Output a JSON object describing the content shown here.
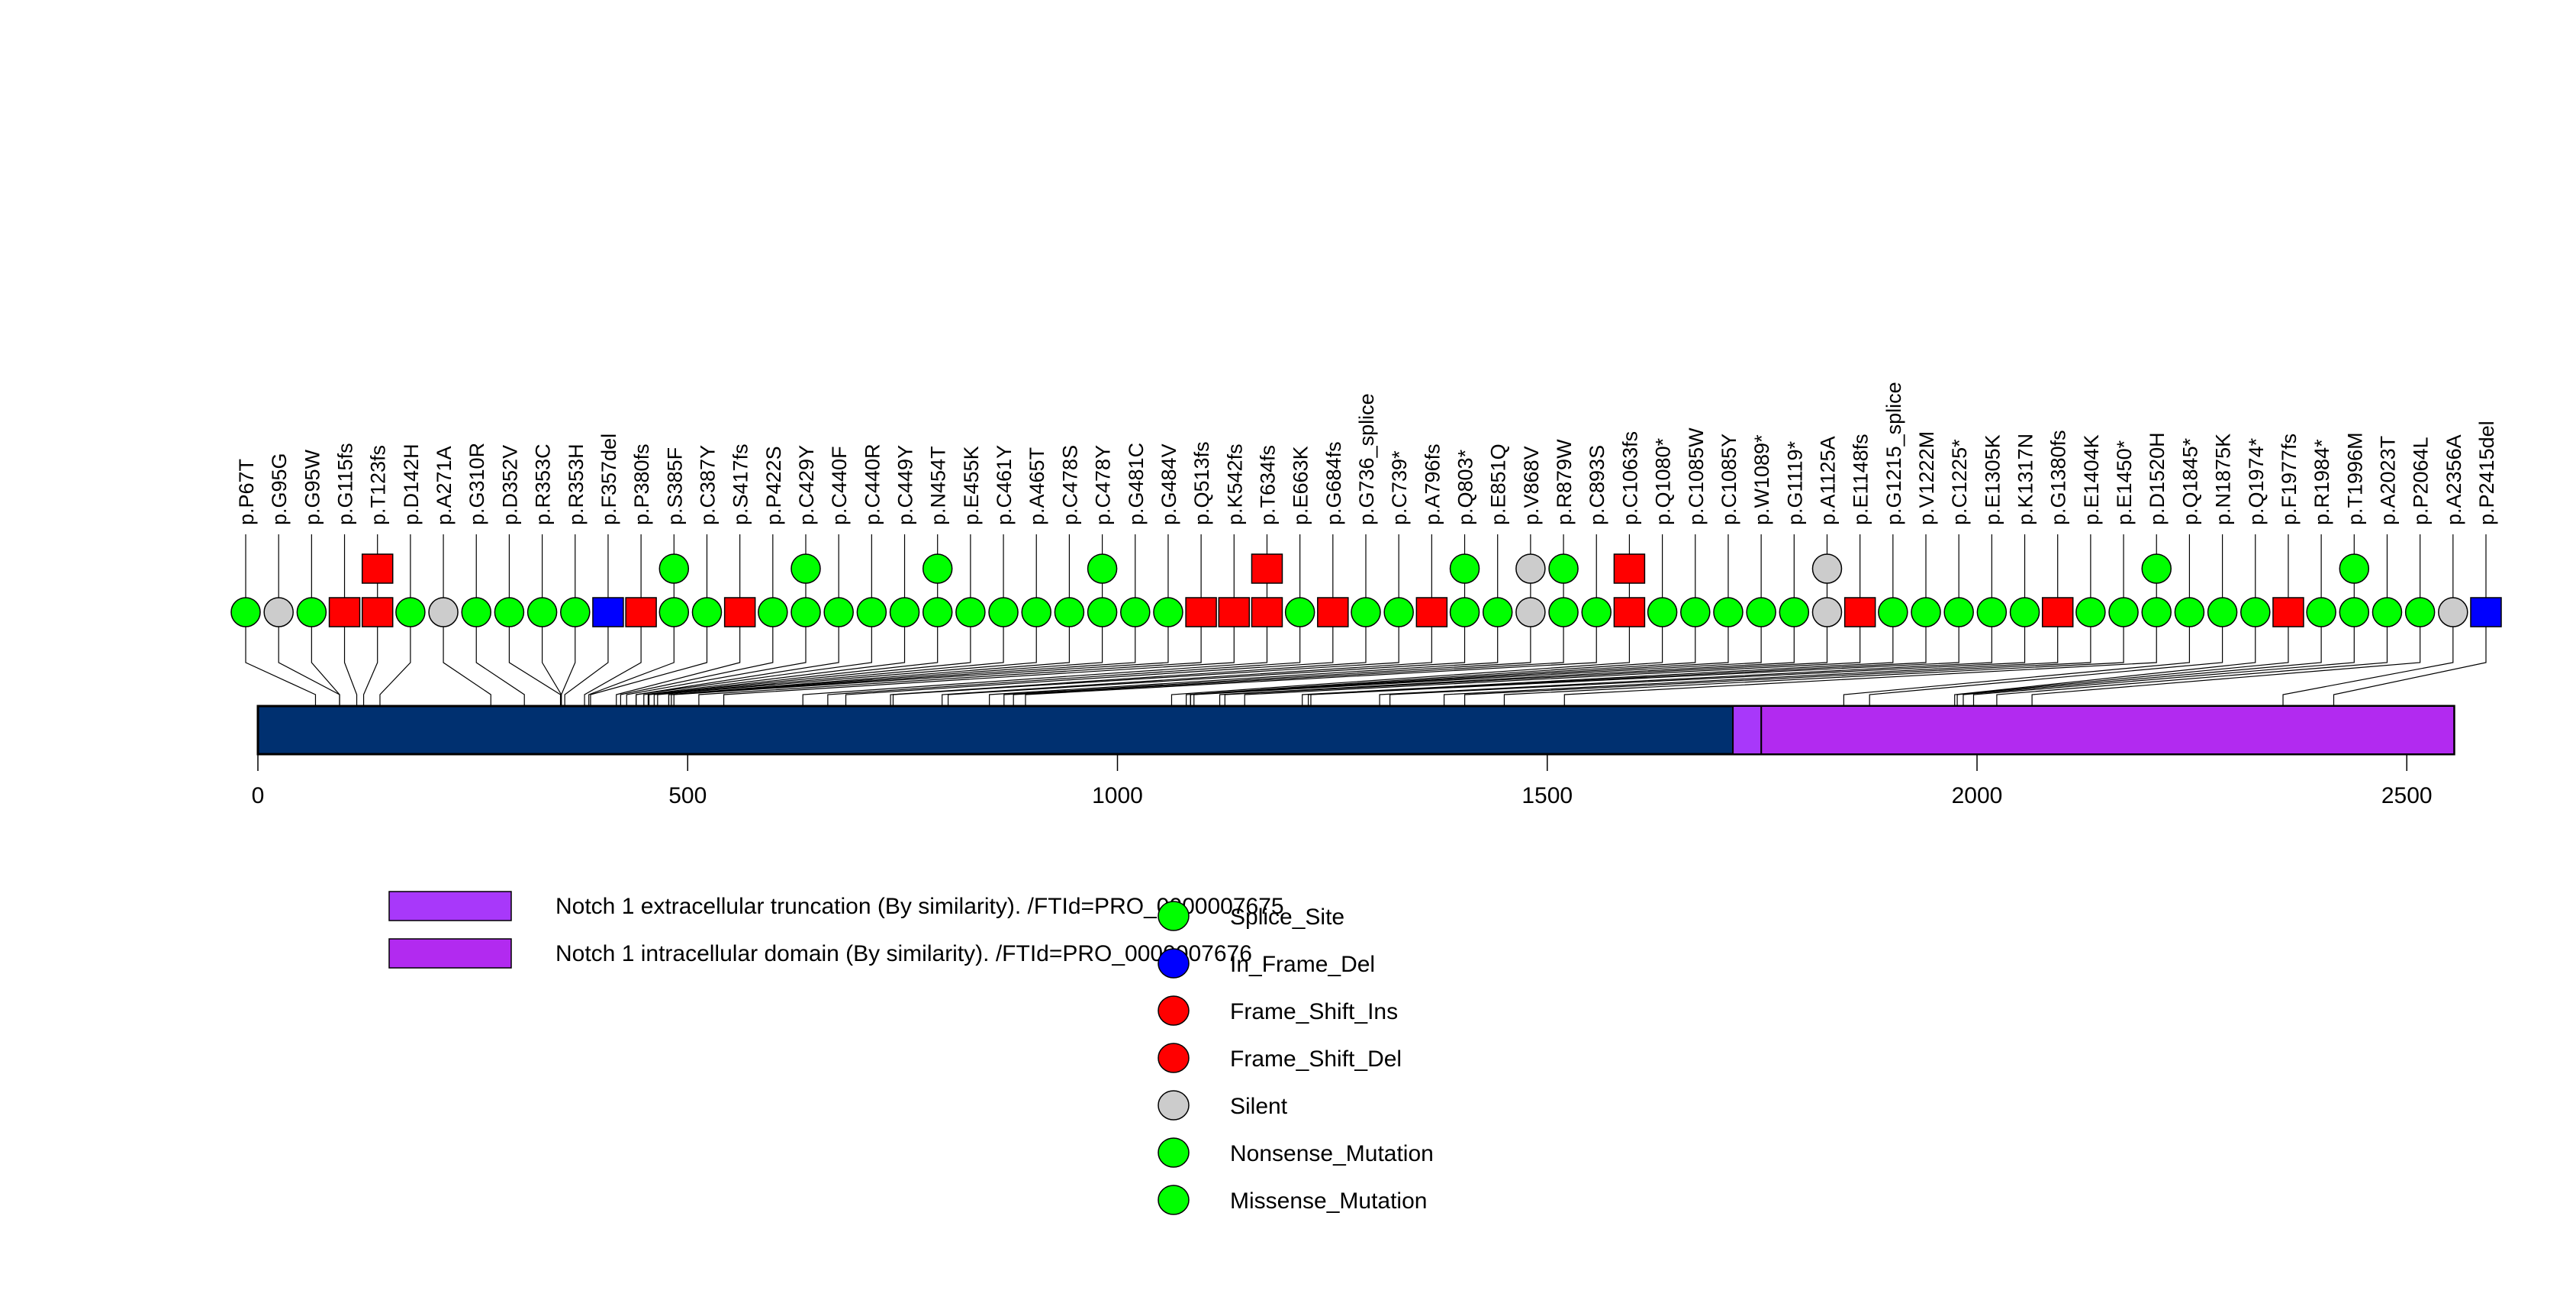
{
  "chart_data": {
    "type": "lollipop",
    "title": "",
    "xlabel": "",
    "ylabel": "",
    "protein_length": 2555,
    "xlim": [
      0,
      2555
    ],
    "x_ticks": [
      0,
      500,
      1000,
      1500,
      2000,
      2500
    ],
    "backbone_color": "#003070",
    "domains": [
      {
        "name": "Notch 1 extracellular truncation (By similarity). /FTId=PRO_0000007675",
        "start": 1716,
        "end": 1749,
        "color": "#A838FA"
      },
      {
        "name": "Notch 1 intracellular domain (By similarity). /FTId=PRO_0000007676",
        "start": 1749,
        "end": 2555,
        "color": "#B22AF0"
      }
    ],
    "mutation_types": [
      {
        "name": "Splice_Site",
        "color": "#00FF00"
      },
      {
        "name": "In_Frame_Del",
        "color": "#0000FF"
      },
      {
        "name": "Frame_Shift_Ins",
        "color": "#FF0000"
      },
      {
        "name": "Frame_Shift_Del",
        "color": "#FF0000"
      },
      {
        "name": "Silent",
        "color": "#CCCCCC"
      },
      {
        "name": "Nonsense_Mutation",
        "color": "#00FF00"
      },
      {
        "name": "Missense_Mutation",
        "color": "#00FF00"
      }
    ],
    "mutations": [
      {
        "label": "p.P67T",
        "pos": 67,
        "count": 1,
        "class": "green",
        "shape": "circle"
      },
      {
        "label": "p.G95G",
        "pos": 95,
        "count": 1,
        "class": "silent",
        "shape": "circle"
      },
      {
        "label": "p.G95W",
        "pos": 95,
        "count": 1,
        "class": "green",
        "shape": "circle"
      },
      {
        "label": "p.G115fs",
        "pos": 115,
        "count": 1,
        "class": "red",
        "shape": "square"
      },
      {
        "label": "p.T123fs",
        "pos": 123,
        "count": 2,
        "class": "red",
        "shape": "square"
      },
      {
        "label": "p.D142H",
        "pos": 142,
        "count": 1,
        "class": "green",
        "shape": "circle"
      },
      {
        "label": "p.A271A",
        "pos": 271,
        "count": 1,
        "class": "silent",
        "shape": "circle"
      },
      {
        "label": "p.G310R",
        "pos": 310,
        "count": 1,
        "class": "green",
        "shape": "circle"
      },
      {
        "label": "p.D352V",
        "pos": 352,
        "count": 1,
        "class": "green",
        "shape": "circle"
      },
      {
        "label": "p.R353C",
        "pos": 353,
        "count": 1,
        "class": "green",
        "shape": "circle"
      },
      {
        "label": "p.R353H",
        "pos": 353,
        "count": 1,
        "class": "green",
        "shape": "circle"
      },
      {
        "label": "p.F357del",
        "pos": 357,
        "count": 1,
        "class": "blue",
        "shape": "square"
      },
      {
        "label": "p.P380fs",
        "pos": 380,
        "count": 1,
        "class": "red",
        "shape": "square"
      },
      {
        "label": "p.S385F",
        "pos": 385,
        "count": 2,
        "class": "green",
        "shape": "circle"
      },
      {
        "label": "p.C387Y",
        "pos": 387,
        "count": 1,
        "class": "green",
        "shape": "circle"
      },
      {
        "label": "p.S417fs",
        "pos": 417,
        "count": 1,
        "class": "red",
        "shape": "square"
      },
      {
        "label": "p.P422S",
        "pos": 422,
        "count": 1,
        "class": "green",
        "shape": "circle"
      },
      {
        "label": "p.C429Y",
        "pos": 429,
        "count": 2,
        "class": "green",
        "shape": "circle"
      },
      {
        "label": "p.C440F",
        "pos": 440,
        "count": 1,
        "class": "green",
        "shape": "circle"
      },
      {
        "label": "p.C440R",
        "pos": 440,
        "count": 1,
        "class": "green",
        "shape": "circle"
      },
      {
        "label": "p.C449Y",
        "pos": 449,
        "count": 1,
        "class": "green",
        "shape": "circle"
      },
      {
        "label": "p.N454T",
        "pos": 454,
        "count": 2,
        "class": "green",
        "shape": "circle"
      },
      {
        "label": "p.E455K",
        "pos": 455,
        "count": 1,
        "class": "green",
        "shape": "circle"
      },
      {
        "label": "p.C461Y",
        "pos": 461,
        "count": 1,
        "class": "green",
        "shape": "circle"
      },
      {
        "label": "p.A465T",
        "pos": 465,
        "count": 1,
        "class": "green",
        "shape": "circle"
      },
      {
        "label": "p.C478S",
        "pos": 478,
        "count": 1,
        "class": "green",
        "shape": "circle"
      },
      {
        "label": "p.C478Y",
        "pos": 478,
        "count": 2,
        "class": "green",
        "shape": "circle"
      },
      {
        "label": "p.G481C",
        "pos": 481,
        "count": 1,
        "class": "green",
        "shape": "circle"
      },
      {
        "label": "p.G484V",
        "pos": 484,
        "count": 1,
        "class": "green",
        "shape": "circle"
      },
      {
        "label": "p.Q513fs",
        "pos": 513,
        "count": 1,
        "class": "red",
        "shape": "square"
      },
      {
        "label": "p.K542fs",
        "pos": 542,
        "count": 1,
        "class": "red",
        "shape": "square"
      },
      {
        "label": "p.T634fs",
        "pos": 634,
        "count": 2,
        "class": "red",
        "shape": "square"
      },
      {
        "label": "p.E663K",
        "pos": 663,
        "count": 1,
        "class": "green",
        "shape": "circle"
      },
      {
        "label": "p.G684fs",
        "pos": 684,
        "count": 1,
        "class": "red",
        "shape": "square"
      },
      {
        "label": "p.G736_splice",
        "pos": 736,
        "count": 1,
        "class": "green",
        "shape": "circle"
      },
      {
        "label": "p.C739*",
        "pos": 739,
        "count": 1,
        "class": "green",
        "shape": "circle"
      },
      {
        "label": "p.A796fs",
        "pos": 796,
        "count": 1,
        "class": "red",
        "shape": "square"
      },
      {
        "label": "p.Q803*",
        "pos": 803,
        "count": 2,
        "class": "green",
        "shape": "circle"
      },
      {
        "label": "p.E851Q",
        "pos": 851,
        "count": 1,
        "class": "green",
        "shape": "circle"
      },
      {
        "label": "p.V868V",
        "pos": 868,
        "count": 2,
        "class": "silent",
        "shape": "circle"
      },
      {
        "label": "p.R879W",
        "pos": 879,
        "count": 2,
        "class": "green",
        "shape": "circle"
      },
      {
        "label": "p.C893S",
        "pos": 893,
        "count": 1,
        "class": "green",
        "shape": "circle"
      },
      {
        "label": "p.C1063fs",
        "pos": 1063,
        "count": 2,
        "class": "red",
        "shape": "square"
      },
      {
        "label": "p.Q1080*",
        "pos": 1080,
        "count": 1,
        "class": "green",
        "shape": "circle"
      },
      {
        "label": "p.C1085W",
        "pos": 1085,
        "count": 1,
        "class": "green",
        "shape": "circle"
      },
      {
        "label": "p.C1085Y",
        "pos": 1085,
        "count": 1,
        "class": "green",
        "shape": "circle"
      },
      {
        "label": "p.W1089*",
        "pos": 1089,
        "count": 1,
        "class": "green",
        "shape": "circle"
      },
      {
        "label": "p.G1119*",
        "pos": 1119,
        "count": 1,
        "class": "green",
        "shape": "circle"
      },
      {
        "label": "p.A1125A",
        "pos": 1125,
        "count": 2,
        "class": "silent",
        "shape": "circle"
      },
      {
        "label": "p.E1148fs",
        "pos": 1148,
        "count": 1,
        "class": "red",
        "shape": "square"
      },
      {
        "label": "p.G1215_splice",
        "pos": 1215,
        "count": 1,
        "class": "green",
        "shape": "circle"
      },
      {
        "label": "p.V1222M",
        "pos": 1222,
        "count": 1,
        "class": "green",
        "shape": "circle"
      },
      {
        "label": "p.C1225*",
        "pos": 1225,
        "count": 1,
        "class": "green",
        "shape": "circle"
      },
      {
        "label": "p.E1305K",
        "pos": 1305,
        "count": 1,
        "class": "green",
        "shape": "circle"
      },
      {
        "label": "p.K1317N",
        "pos": 1317,
        "count": 1,
        "class": "green",
        "shape": "circle"
      },
      {
        "label": "p.G1380fs",
        "pos": 1380,
        "count": 1,
        "class": "red",
        "shape": "square"
      },
      {
        "label": "p.E1404K",
        "pos": 1404,
        "count": 1,
        "class": "green",
        "shape": "circle"
      },
      {
        "label": "p.E1450*",
        "pos": 1450,
        "count": 1,
        "class": "green",
        "shape": "circle"
      },
      {
        "label": "p.D1520H",
        "pos": 1520,
        "count": 2,
        "class": "green",
        "shape": "circle"
      },
      {
        "label": "p.Q1845*",
        "pos": 1845,
        "count": 1,
        "class": "green",
        "shape": "circle"
      },
      {
        "label": "p.N1875K",
        "pos": 1875,
        "count": 1,
        "class": "green",
        "shape": "circle"
      },
      {
        "label": "p.Q1974*",
        "pos": 1974,
        "count": 1,
        "class": "green",
        "shape": "circle"
      },
      {
        "label": "p.F1977fs",
        "pos": 1977,
        "count": 1,
        "class": "red",
        "shape": "square"
      },
      {
        "label": "p.R1984*",
        "pos": 1984,
        "count": 1,
        "class": "green",
        "shape": "circle"
      },
      {
        "label": "p.T1996M",
        "pos": 1996,
        "count": 2,
        "class": "green",
        "shape": "circle"
      },
      {
        "label": "p.A2023T",
        "pos": 2023,
        "count": 1,
        "class": "green",
        "shape": "circle"
      },
      {
        "label": "p.P2064L",
        "pos": 2064,
        "count": 1,
        "class": "green",
        "shape": "circle"
      },
      {
        "label": "p.A2356A",
        "pos": 2356,
        "count": 1,
        "class": "silent",
        "shape": "circle"
      },
      {
        "label": "p.P2415del",
        "pos": 2415,
        "count": 1,
        "class": "blue",
        "shape": "square"
      }
    ],
    "class_colors": {
      "green": "#00FF00",
      "red": "#FF0000",
      "silent": "#CCCCCC",
      "blue": "#0000FF"
    }
  }
}
